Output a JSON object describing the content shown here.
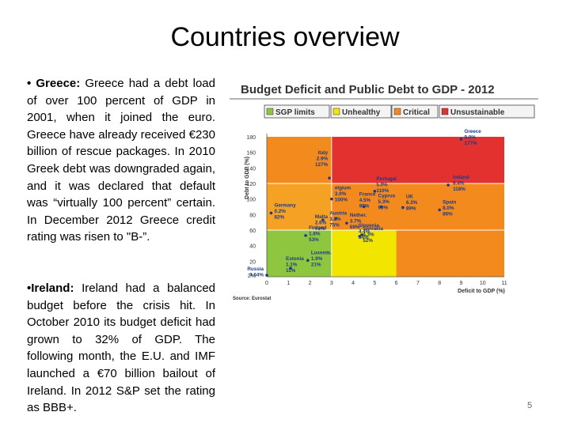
{
  "slide": {
    "title": "Countries overview",
    "page_number": "5",
    "greece": {
      "label": "Greece:",
      "text": "Greece had a debt load of over 100 percent of GDP in 2001, when it joined the euro. Greece have already received €230 billion of rescue packages. In 2010 Greek debt was downgraded again, and it was declared that default was “virtually 100 percent” certain. In December 2012 Greece credit rating was risen to \"B-”."
    },
    "ireland": {
      "label": "Ireland:",
      "text": "Ireland had a balanced budget before the crisis hit. In October 2010 its budget deficit had grown to 32% of GDP. The following month, the E.U. and IMF launched a €70 billion bailout of Ireland. In 2012 S&P set the rating as BBB+."
    }
  },
  "chart_data": {
    "type": "scatter",
    "title": "Budget Deficit and Public Debt to GDP - 2012",
    "xlabel": "Deficit to GDP (%)",
    "ylabel": "Debt to GDP (%)",
    "source": "Source: Eurostat",
    "legend": [
      {
        "label": "SGP limits",
        "color": "#8fc63f"
      },
      {
        "label": "Unhealthy",
        "color": "#f2e600"
      },
      {
        "label": "Critical",
        "color": "#f28a1e"
      },
      {
        "label": "Unsustainable",
        "color": "#e2312e"
      }
    ],
    "x_ticks": [
      "0",
      "1",
      "2",
      "3",
      "4",
      "5",
      "6",
      "7",
      "8",
      "9",
      "10",
      "11"
    ],
    "y_ticks": [
      "180",
      "160",
      "140",
      "120",
      "100",
      "80",
      "60",
      "40",
      "20",
      "2%"
    ],
    "zones": {
      "sgp": {
        "x": [
          0,
          3
        ],
        "y": [
          0,
          60
        ]
      },
      "unhealthy": {
        "x": [
          3,
          6
        ],
        "y": [
          0,
          60
        ]
      },
      "critical_vertical": {
        "x": [
          0,
          3
        ],
        "y": [
          60,
          180
        ]
      },
      "unsustainable": {
        "x": [
          3,
          11
        ],
        "y": [
          120,
          180
        ]
      }
    },
    "points": [
      {
        "name": "Greece",
        "deficit": 9.0,
        "debt": 177,
        "label": [
          "Greece",
          "9.0%",
          "177%"
        ]
      },
      {
        "name": "Italy",
        "deficit": 2.9,
        "debt": 127,
        "label": [
          "Italy",
          "2.9%",
          "127%"
        ]
      },
      {
        "name": "Belgium",
        "deficit": 3.0,
        "debt": 100,
        "label": [
          "elgium",
          "3.0%",
          "100%"
        ]
      },
      {
        "name": "France",
        "deficit": 4.5,
        "debt": 90,
        "label": [
          "France",
          "4.5%",
          "90%"
        ]
      },
      {
        "name": "Portugal",
        "deficit": 5.0,
        "debt": 110,
        "label": [
          "Portugal",
          "5.0%",
          "110%"
        ]
      },
      {
        "name": "Ireland",
        "deficit": 8.4,
        "debt": 118,
        "label": [
          "Ireland",
          "8.4%",
          "118%"
        ]
      },
      {
        "name": "Germany",
        "deficit": 0.2,
        "debt": 82,
        "label": [
          "Germany",
          "0.2%",
          "82%"
        ]
      },
      {
        "name": "Malta",
        "deficit": 2.6,
        "debt": 73,
        "label": [
          "Malta",
          "2.6%",
          "73%"
        ]
      },
      {
        "name": "Austria",
        "deficit": 3.2,
        "debt": 75,
        "label": [
          "Austria",
          "3.2%",
          "75%"
        ]
      },
      {
        "name": "Netherlands",
        "deficit": 3.7,
        "debt": 69,
        "label": [
          "Nether.",
          "3.7%",
          "69%"
        ]
      },
      {
        "name": "Cyprus",
        "deficit": 5.3,
        "debt": 90,
        "label": [
          "Cyprus",
          "5.3%",
          "90%"
        ]
      },
      {
        "name": "UK",
        "deficit": 6.3,
        "debt": 89,
        "label": [
          "UK",
          "6.3%",
          "89%"
        ]
      },
      {
        "name": "Spain",
        "deficit": 8.0,
        "debt": 86,
        "label": [
          "Spain",
          "8.0%",
          "86%"
        ]
      },
      {
        "name": "Finland",
        "deficit": 1.8,
        "debt": 53,
        "label": [
          "Finland",
          "1.8%",
          "53%"
        ]
      },
      {
        "name": "Slovenia",
        "deficit": 4.4,
        "debt": 54,
        "label": [
          "Slovenia",
          "4.4%",
          "54%"
        ]
      },
      {
        "name": "Slovakia",
        "deficit": 4.3,
        "debt": 52,
        "label": [
          "Slovakia",
          "4.3%",
          "52%"
        ]
      },
      {
        "name": "Estonia",
        "deficit": 1.1,
        "debt": 11,
        "label": [
          "Estonia",
          "1.1%",
          "11%"
        ]
      },
      {
        "name": "Luxembourg",
        "deficit": 1.9,
        "debt": 21,
        "label": [
          "Luxemb.",
          "1.9%",
          "21%"
        ]
      },
      {
        "name": "Russia",
        "deficit": 0.0,
        "debt": 2,
        "label": [
          "Russia",
          "0.04%"
        ]
      }
    ]
  }
}
